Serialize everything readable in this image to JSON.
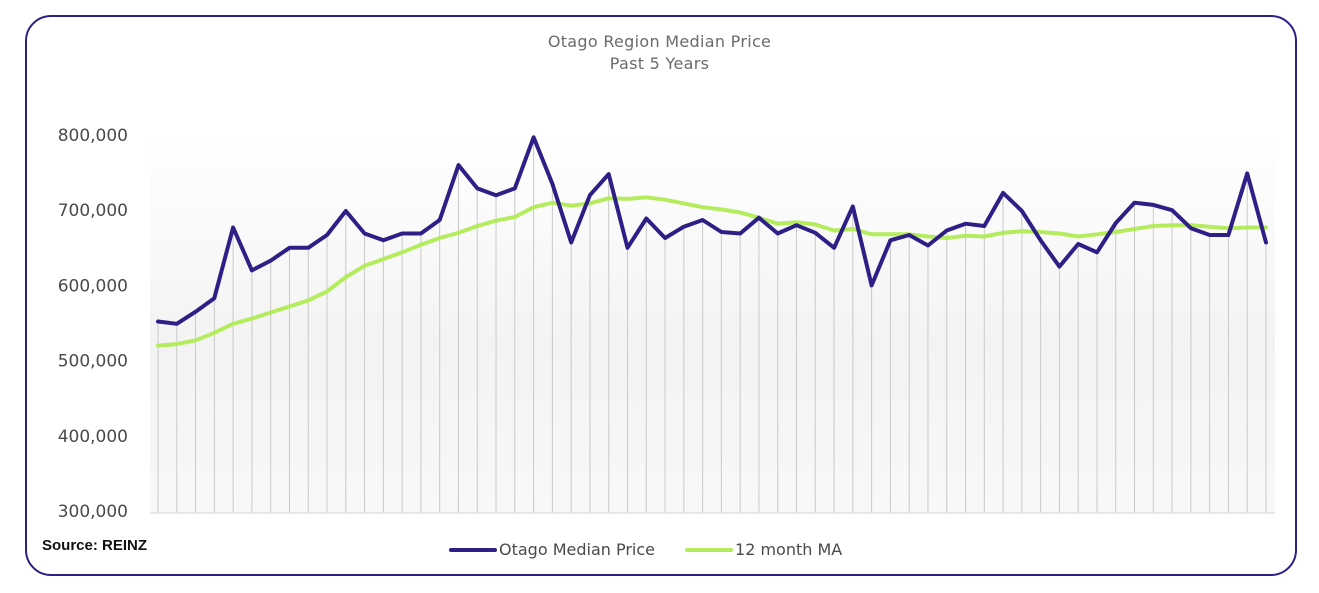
{
  "chart_data": {
    "type": "line",
    "title": "Otago Region Median Price",
    "subtitle": "Past 5 Years",
    "ylim": [
      300000,
      800000
    ],
    "yticks": [
      "300,000",
      "400,000",
      "500,000",
      "600,000",
      "700,000",
      "800,000"
    ],
    "ytick_values": [
      300000,
      400000,
      500000,
      600000,
      700000,
      800000
    ],
    "xlabel": "",
    "ylabel": "",
    "grid": "vertical",
    "legend": "bottom-center",
    "series": [
      {
        "name": "Otago Median Price",
        "color": "#2e1f86",
        "values": [
          552000,
          549000,
          565000,
          583000,
          677000,
          620000,
          633000,
          650000,
          650000,
          667000,
          699000,
          669000,
          660000,
          669000,
          669000,
          687000,
          760000,
          729000,
          720000,
          729000,
          797000,
          735000,
          657000,
          720000,
          748000,
          650000,
          689000,
          663000,
          678000,
          687000,
          671000,
          669000,
          690000,
          669000,
          680000,
          670000,
          650000,
          705000,
          600000,
          660000,
          667000,
          653000,
          673000,
          682000,
          679000,
          723000,
          699000,
          660000,
          625000,
          655000,
          644000,
          683000,
          710000,
          707000,
          700000,
          676000,
          667000,
          667000,
          749000,
          657000
        ]
      },
      {
        "name": "12 month MA",
        "color": "#b4ec5d",
        "values": [
          520000,
          522000,
          527000,
          537000,
          549000,
          556000,
          564000,
          572000,
          580000,
          592000,
          611000,
          626000,
          635000,
          644000,
          654000,
          663000,
          670000,
          679000,
          686000,
          691000,
          704000,
          710000,
          706000,
          709000,
          716000,
          715000,
          717000,
          714000,
          709000,
          704000,
          701000,
          697000,
          690000,
          682000,
          684000,
          681000,
          673000,
          675000,
          668000,
          668000,
          668000,
          665000,
          663000,
          666000,
          665000,
          670000,
          672000,
          671000,
          669000,
          665000,
          668000,
          671000,
          675000,
          679000,
          680000,
          680000,
          678000,
          676000,
          677000,
          677000
        ]
      }
    ]
  },
  "source_label": "Source: REINZ"
}
